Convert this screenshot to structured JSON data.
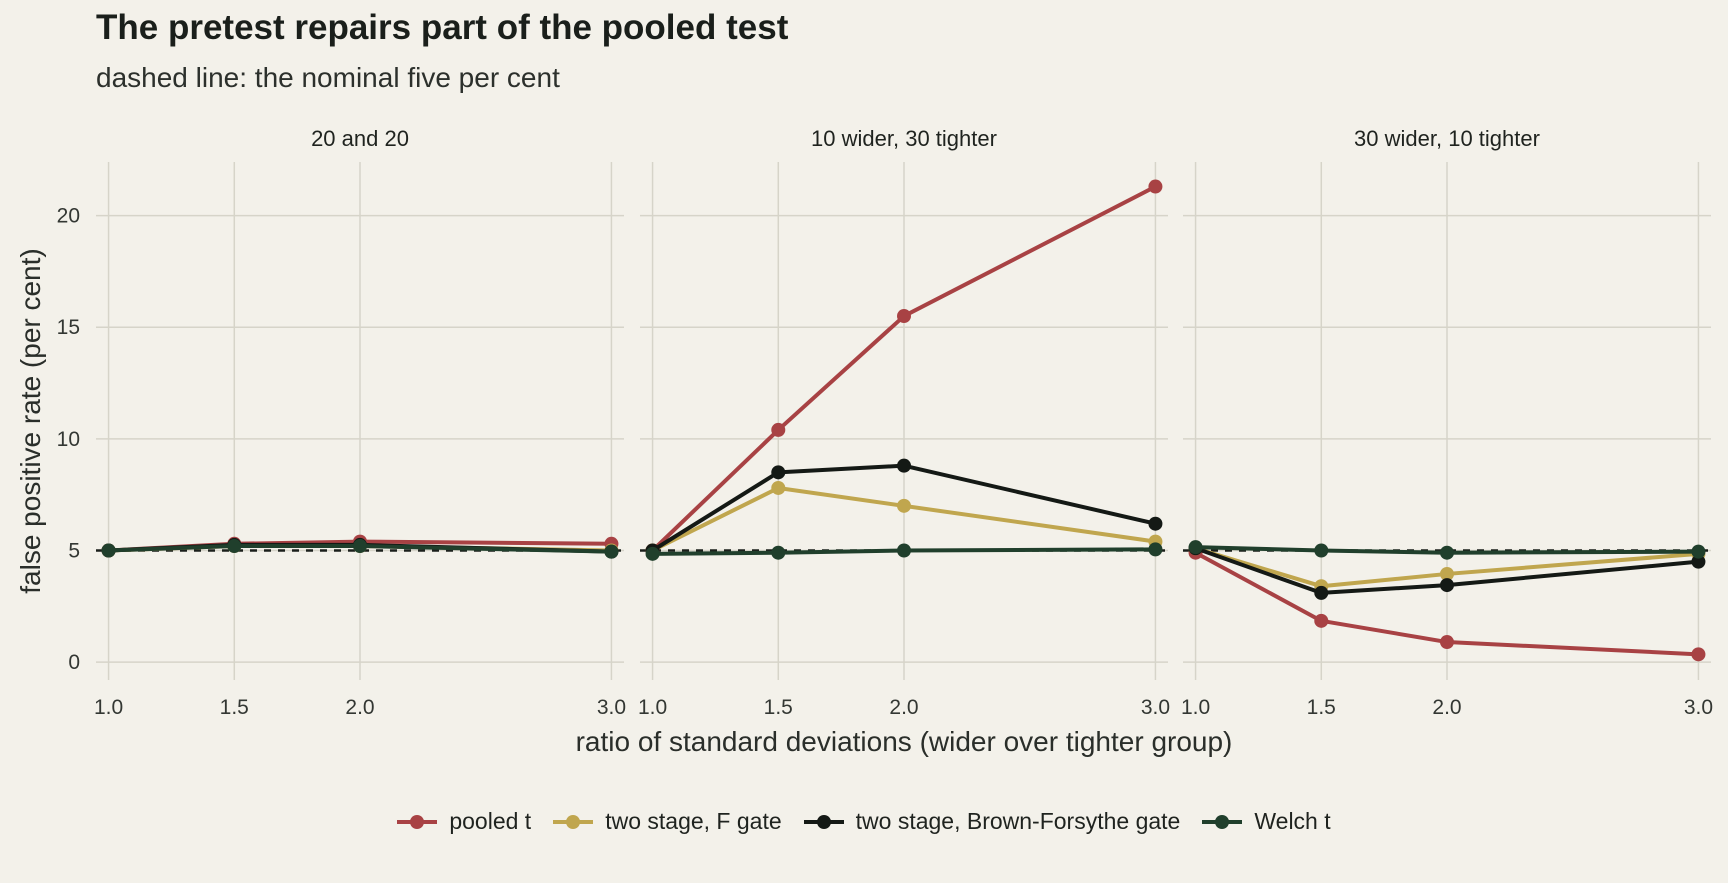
{
  "title": "The pretest repairs part of the pooled test",
  "subtitle": "dashed line: the nominal five per cent",
  "chart_data": {
    "type": "line",
    "xlabel": "ratio of standard deviations (wider over tighter group)",
    "ylabel": "false positive rate (per cent)",
    "x_ticks": [
      "1.0",
      "1.5",
      "2.0",
      "3.0"
    ],
    "y_ticks": [
      0,
      5,
      10,
      15,
      20
    ],
    "xlim": [
      0.95,
      3.05
    ],
    "ylim": [
      -0.8,
      22.4
    ],
    "reference_line": 5,
    "grid": true,
    "legend_position": "bottom",
    "series_meta": [
      {
        "name": "pooled t",
        "color": "#a84244"
      },
      {
        "name": "two stage, F gate",
        "color": "#c0a64e"
      },
      {
        "name": "two stage, Brown-Forsythe gate",
        "color": "#141915"
      },
      {
        "name": "Welch t",
        "color": "#203f2c"
      }
    ],
    "panels": [
      {
        "title": "20 and 20",
        "x": [
          1.0,
          1.5,
          2.0,
          3.0
        ],
        "series": [
          {
            "name": "pooled t",
            "values": [
              5.0,
              5.3,
              5.4,
              5.3
            ]
          },
          {
            "name": "two stage, F gate",
            "values": [
              5.0,
              5.2,
              5.2,
              5.0
            ]
          },
          {
            "name": "two stage, Brown-Forsythe gate",
            "values": [
              5.0,
              5.25,
              5.25,
              4.95
            ]
          },
          {
            "name": "Welch t",
            "values": [
              5.0,
              5.2,
              5.2,
              4.95
            ]
          }
        ]
      },
      {
        "title": "10 wider, 30 tighter",
        "x": [
          1.0,
          1.5,
          2.0,
          3.0
        ],
        "series": [
          {
            "name": "pooled t",
            "values": [
              5.0,
              10.4,
              15.5,
              21.3
            ]
          },
          {
            "name": "two stage, F gate",
            "values": [
              5.0,
              7.8,
              7.0,
              5.4
            ]
          },
          {
            "name": "two stage, Brown-Forsythe gate",
            "values": [
              5.0,
              8.5,
              8.8,
              6.2
            ]
          },
          {
            "name": "Welch t",
            "values": [
              4.85,
              4.9,
              5.0,
              5.05
            ]
          }
        ]
      },
      {
        "title": "30 wider, 10 tighter",
        "x": [
          1.0,
          1.5,
          2.0,
          3.0
        ],
        "series": [
          {
            "name": "pooled t",
            "values": [
              4.9,
              1.85,
              0.9,
              0.35
            ]
          },
          {
            "name": "two stage, F gate",
            "values": [
              5.1,
              3.4,
              3.95,
              4.85
            ]
          },
          {
            "name": "two stage, Brown-Forsythe gate",
            "values": [
              5.1,
              3.1,
              3.45,
              4.5
            ]
          },
          {
            "name": "Welch t",
            "values": [
              5.15,
              5.0,
              4.9,
              4.95
            ]
          }
        ]
      }
    ]
  }
}
